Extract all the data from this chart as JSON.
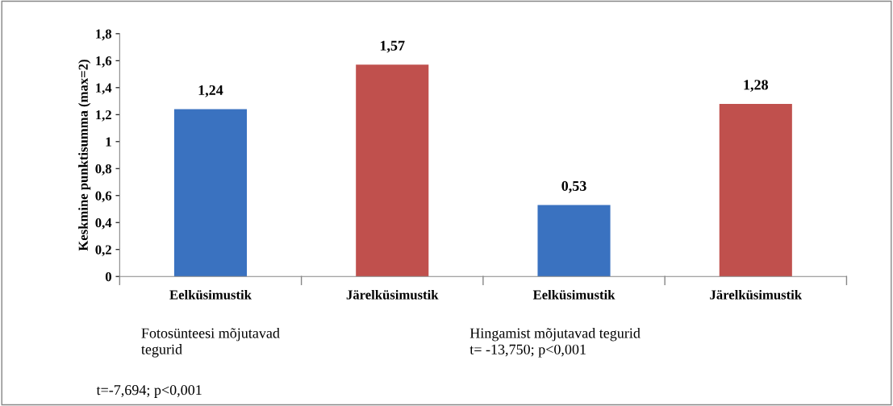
{
  "chart_data": {
    "type": "bar",
    "ylabel": "Keskmine punktisumma (max=2)",
    "categories": [
      "Eelküsimustik",
      "Järelküsimustik",
      "Eelküsimustik",
      "Järelküsimustik"
    ],
    "values": [
      1.24,
      1.57,
      0.53,
      1.28
    ],
    "colors": [
      "#3a72c0",
      "#c0504d",
      "#3a72c0",
      "#c0504d"
    ],
    "value_labels": [
      "1,24",
      "1,57",
      "0,53",
      "1,28"
    ],
    "ylim": [
      0,
      1.8
    ],
    "yticks": [
      0,
      {
        "value": 0.2,
        "label": "0,2"
      },
      {
        "value": 0.4,
        "label": "0,4"
      },
      {
        "value": 0.6,
        "label": "0,6"
      },
      {
        "value": 0.8,
        "label": "0,8"
      },
      1,
      {
        "value": 1.2,
        "label": "1,2"
      },
      {
        "value": 1.4,
        "label": "1,4"
      },
      {
        "value": 1.6,
        "label": "1,6"
      },
      {
        "value": 1.8,
        "label": "1,8"
      }
    ],
    "grid": false,
    "annotations": [
      "Fotosünteesi mõjutavad\ntegurid",
      "t=-7,694; p<0,001",
      "Hingamist mõjutavad tegurid\nt= -13,750; p<0,001"
    ]
  }
}
